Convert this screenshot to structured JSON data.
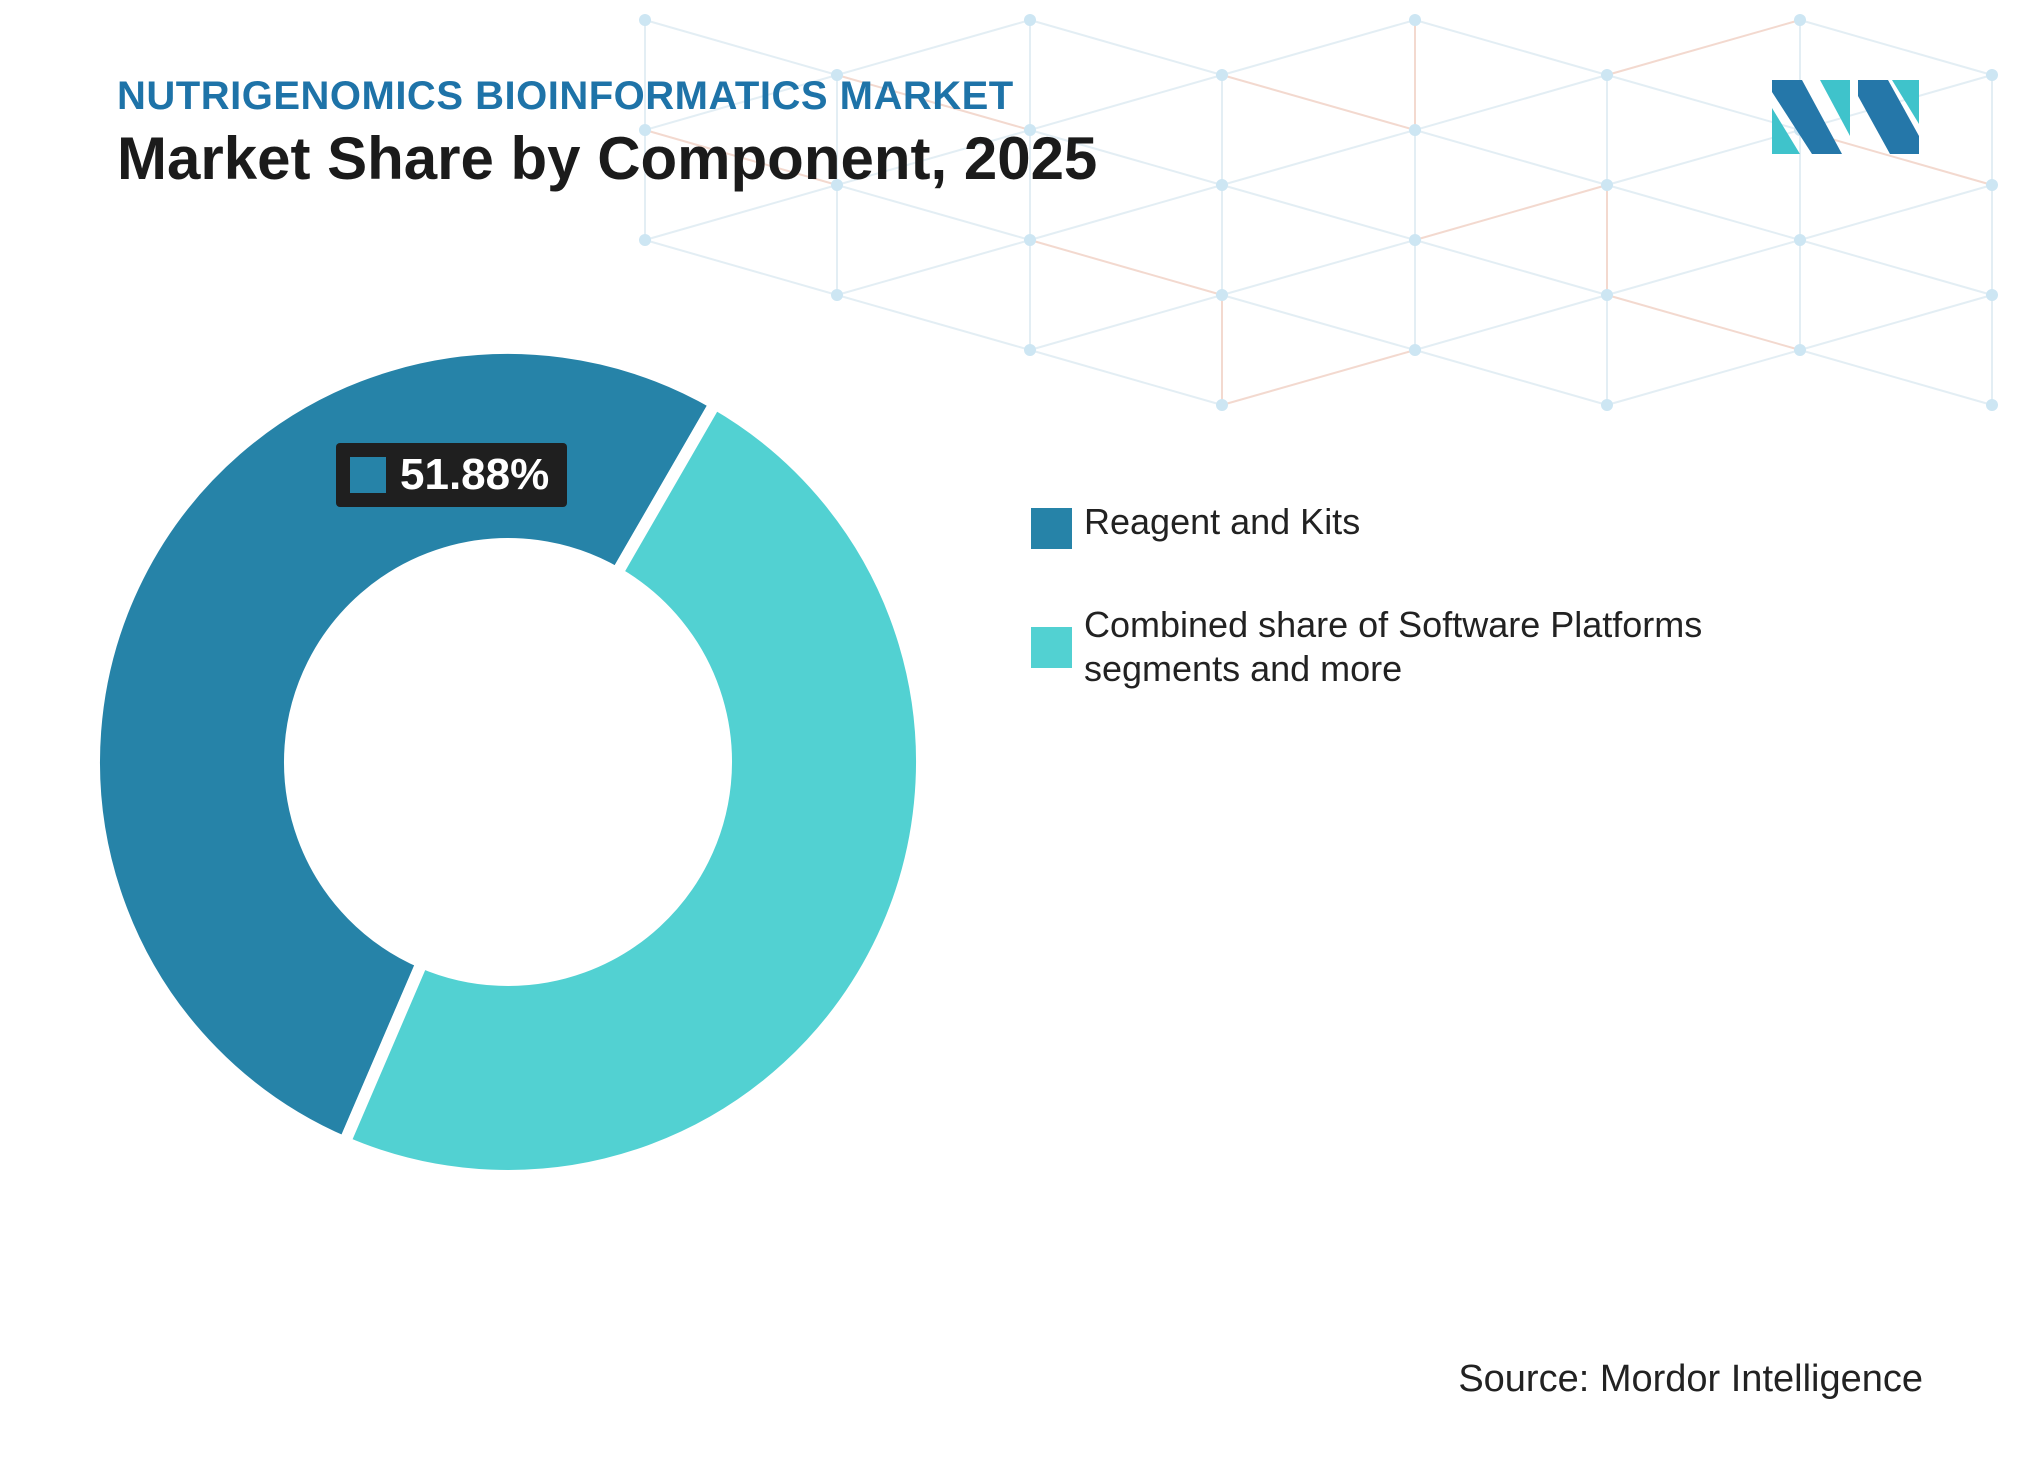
{
  "header": {
    "eyebrow": "NUTRIGENOMICS BIOINFORMATICS MARKET",
    "title": "Market Share by Component, 2025"
  },
  "logo": {
    "icon": "mordor-intelligence-logo-icon",
    "colors": [
      "#2577a9",
      "#3fc3cb"
    ]
  },
  "chart_data": {
    "type": "pie",
    "variant": "donut",
    "title": "Market Share by Component, 2025",
    "categories": [
      "Reagent and Kits",
      "Combined share of Software Platforms segments and more"
    ],
    "values": [
      51.88,
      48.12
    ],
    "unit": "%",
    "colors": [
      "#2683a8",
      "#52d1d2"
    ],
    "data_labels": [
      "51.88%"
    ],
    "legend_position": "right"
  },
  "legend": {
    "items": [
      {
        "label": "Reagent and Kits",
        "color": "#2683a8"
      },
      {
        "label": "Combined share of Software Platforms segments and more",
        "color": "#52d1d2"
      }
    ]
  },
  "source": "Source: Mordor Intelligence"
}
